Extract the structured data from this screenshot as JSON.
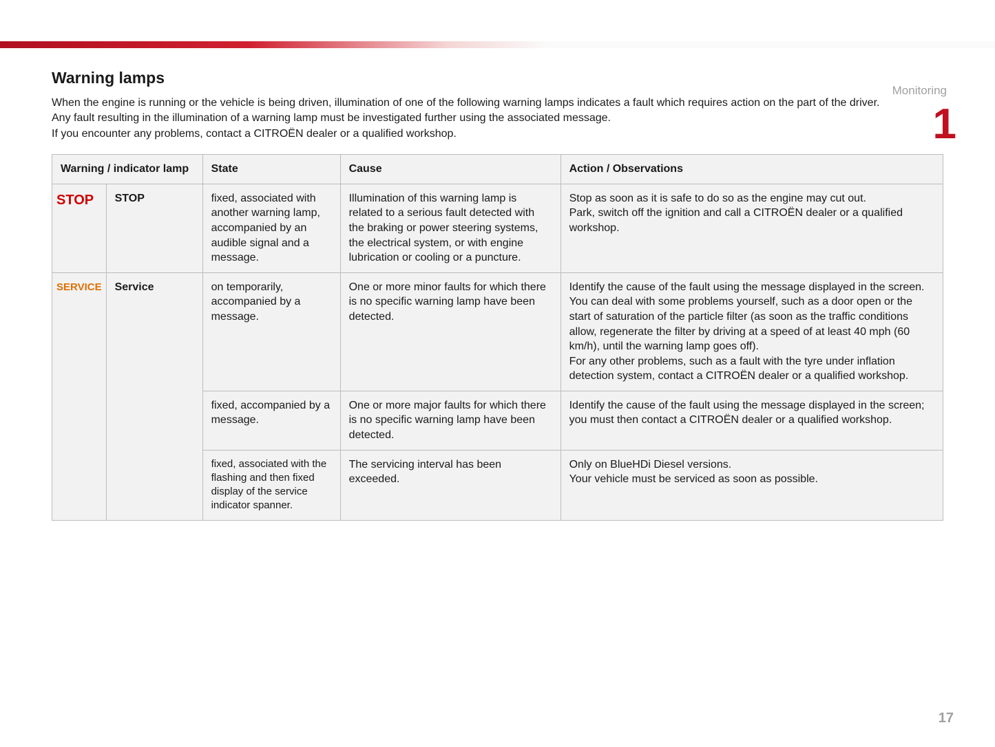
{
  "header": {
    "section_label": "Monitoring",
    "chapter_number": "1",
    "page_number": "17"
  },
  "title": "Warning lamps",
  "intro_p1": "When the engine is running or the vehicle is being driven, illumination of one of the following warning lamps indicates a fault which requires action on the part of the driver.",
  "intro_p2": "Any fault resulting in the illumination of a warning lamp must be investigated further using the associated message.",
  "intro_p3": "If you encounter any problems, contact a CITROËN dealer or a qualified workshop.",
  "table": {
    "columns": {
      "c0": "Warning / indicator lamp",
      "c1": "State",
      "c2": "Cause",
      "c3": "Action / Observations"
    },
    "rows": [
      {
        "icon_text": "STOP",
        "icon_class": "stop-icon",
        "name": "STOP",
        "state": "fixed, associated with another warning lamp, accompanied by an audible signal and a message.",
        "cause": "Illumination of this warning lamp is related to a serious fault detected with the braking or power steering systems, the electrical system, or with engine lubrication or cooling or a puncture.",
        "action": "Stop as soon as it is safe to do so as the engine may cut out.\nPark, switch off the ignition and call a CITROËN dealer or a qualified workshop."
      },
      {
        "icon_text": "SERVICE",
        "icon_class": "service-icon",
        "name": "Service",
        "state": "on temporarily, accompanied by a message.",
        "cause": "One or more minor faults for which there is no specific warning lamp have been detected.",
        "action": "Identify the cause of the fault using the message displayed in the screen.\nYou can deal with some problems yourself, such as a door open or the start of saturation of the particle filter (as soon as the traffic conditions allow, regenerate the filter by driving at a speed of at least 40 mph (60 km/h), until the warning lamp goes off).\nFor any other problems, such as a fault with the tyre under inflation detection system, contact a CITROËN dealer or a qualified workshop."
      },
      {
        "state": "fixed, accompanied by a message.",
        "cause": "One or more major faults for which there is no specific warning lamp have been detected.",
        "action": "Identify the cause of the fault using the message displayed in the screen; you must then contact a CITROËN dealer or a qualified workshop."
      },
      {
        "state": "fixed, associated with the flashing and then fixed display of the service indicator spanner.",
        "cause": "The servicing interval has been exceeded.",
        "action": "Only on BlueHDi Diesel versions.\nYour vehicle must be serviced as soon as possible."
      }
    ]
  }
}
